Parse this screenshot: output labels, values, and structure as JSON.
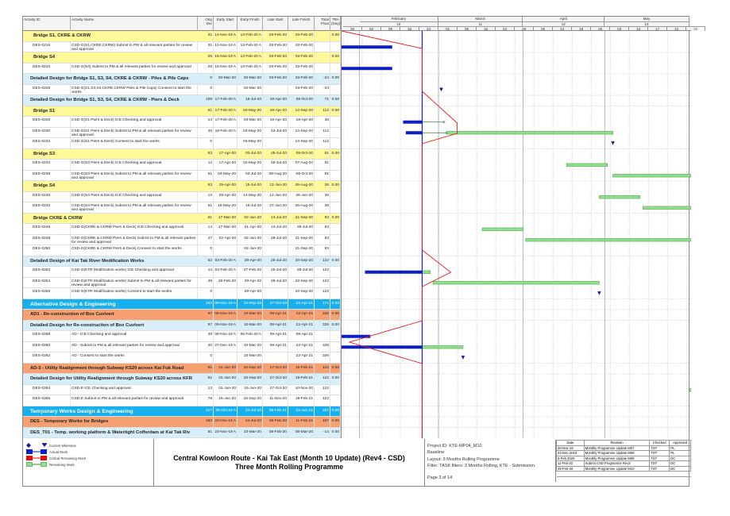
{
  "columns": {
    "id": "Activity ID",
    "name": "Activity Name",
    "dur": "Orig Dur",
    "es": "Early Start",
    "ef": "Early Finish",
    "ls": "Late Start",
    "lf": "Late Finish",
    "tf": "Total Float",
    "tra": "TRA (Day)"
  },
  "timeline": {
    "months": [
      {
        "label": "February",
        "num": "10",
        "start": "2020-02-01",
        "end": "2020-03-01"
      },
      {
        "label": "March",
        "num": "11",
        "start": "2020-03-01",
        "end": "2020-04-01"
      },
      {
        "label": "April",
        "num": "12",
        "start": "2020-04-01",
        "end": "2020-05-01"
      },
      {
        "label": "May",
        "num": "13",
        "start": "2020-05-01",
        "end": "2020-06-01"
      }
    ],
    "weeks": [
      "26",
      "02",
      "09",
      "16",
      "23",
      "01",
      "08",
      "15",
      "22",
      "29",
      "05",
      "12",
      "19",
      "26",
      "03",
      "10",
      "17",
      "24",
      "31"
    ],
    "start": "2020-01-26",
    "data_date": "2020-02-24"
  },
  "colors": {
    "actual": "#0a1fc8",
    "remaining": "#8fe08a",
    "critical": "#ee1c1c",
    "data_date": "#1a1ad0"
  },
  "rows": [
    {
      "style": "yellow",
      "g": 1,
      "lv": 1,
      "name": "Bridge S1, CKRE & CKRW",
      "dur": "31",
      "es": "14-Nov-19 A",
      "ef": "13-Feb-20 A",
      "ls": "03-Feb-20",
      "lf": "03-Feb-20",
      "tf": "",
      "tra": "0.00"
    },
    {
      "style": "white",
      "id": "DES-0216",
      "name": "CSD-G(S1,CKRE,CKRW) Submit to PM & all relevant parties for review and approval",
      "dur": "31",
      "es": "14-Nov-19 A",
      "ef": "13-Feb-20 A",
      "ls": "03-Feb-20",
      "lf": "03-Feb-20",
      "tf": "",
      "tra": "",
      "bars": [
        {
          "k": "actual",
          "s": "2019-11-14",
          "e": "2020-02-13"
        }
      ]
    },
    {
      "style": "yellow",
      "g": 1,
      "lv": 1,
      "name": "Bridge S4",
      "dur": "29",
      "es": "15-Nov-19 A",
      "ef": "13-Feb-20 A",
      "ls": "03-Feb-20",
      "lf": "03-Feb-20",
      "tf": "",
      "tra": "0.00"
    },
    {
      "style": "white",
      "id": "DES-0220",
      "name": "CSD-G(S4) Submit to PM & all relevant parties for review and approval",
      "dur": "29",
      "es": "15-Nov-19 A",
      "ef": "13-Feb-20 A",
      "ls": "03-Feb-20",
      "lf": "03-Feb-20",
      "tf": "",
      "tra": "",
      "bars": [
        {
          "k": "actual",
          "s": "2019-11-15",
          "e": "2020-02-13"
        }
      ]
    },
    {
      "style": "lblue",
      "g": 1,
      "lv": 0,
      "name": "Detailed Design for Bridge S1, S3, S4, CKRE & CKRW - Piles & Pile Caps",
      "dur": "0",
      "es": "02-Mar-20",
      "ef": "02-Mar-20",
      "ls": "03-Feb-20",
      "lf": "03-Feb-20",
      "tf": "-24",
      "tra": "0.00"
    },
    {
      "style": "white",
      "id": "DES-0226",
      "name": "CSD-G(S1,S3,S4,CKRE,CKRW Piles & Pile Caps) Consent to start the works",
      "dur": "0",
      "es": "",
      "ef": "02-Mar-20",
      "ls": "",
      "lf": "03-Feb-20",
      "tf": "-24",
      "tra": "",
      "bars": [
        {
          "k": "milestone",
          "s": "2020-03-02"
        }
      ]
    },
    {
      "style": "lblue",
      "g": 1,
      "lv": 0,
      "name": "Detailed Design for Bridge S1, S3, S4, CKRE & CKRW - Piers & Deck",
      "dur": "108",
      "es": "17-Feb-20 A",
      "ef": "15-Jul-20",
      "ls": "18-Apr-20",
      "lf": "08-Oct-20",
      "tf": "71",
      "tra": "0.00"
    },
    {
      "style": "yellow",
      "g": 1,
      "lv": 1,
      "name": "Bridge S1",
      "dur": "61",
      "es": "17-Feb-20 A",
      "ef": "04-May-20",
      "ls": "18-Apr-20",
      "lf": "14-Sep-20",
      "tf": "112",
      "tra": "0.00"
    },
    {
      "style": "white",
      "id": "DES-0228",
      "name": "CSD-G(S1 Piers & Deck) ICE Checking and approval",
      "dur": "14",
      "es": "17-Feb-20 A",
      "ef": "03-Mar-20",
      "ls": "18-Apr-20",
      "lf": "18-Apr-20",
      "tf": "36",
      "tra": "",
      "bars": [
        {
          "k": "actual",
          "s": "2020-02-17",
          "e": "2020-02-24"
        },
        {
          "k": "link",
          "s": "2020-02-24",
          "e": "2020-03-03"
        }
      ]
    },
    {
      "style": "white",
      "id": "DES-0230",
      "name": "CSD-G(S1 Piers & Deck) Submit to PM & all relevant parties for review and approval",
      "dur": "46",
      "es": "18-Feb-20 A",
      "ef": "04-May-20",
      "ls": "23-Jul-20",
      "lf": "14-Sep-20",
      "tf": "112",
      "tra": "",
      "bars": [
        {
          "k": "actual",
          "s": "2020-02-18",
          "e": "2020-02-24"
        },
        {
          "k": "link",
          "s": "2020-02-24",
          "e": "2020-03-04"
        },
        {
          "k": "remaining",
          "s": "2020-03-04",
          "e": "2020-05-04"
        }
      ]
    },
    {
      "style": "white",
      "id": "DES-0232",
      "name": "CSD-G(S1 Piers & Deck) Consent to start the works",
      "dur": "0",
      "es": "",
      "ef": "04-May-20",
      "ls": "",
      "lf": "14-Sep-20",
      "tf": "112",
      "tra": "",
      "bars": [
        {
          "k": "milestone",
          "s": "2020-05-04"
        }
      ]
    },
    {
      "style": "yellow",
      "g": 1,
      "lv": 1,
      "name": "Bridge S3",
      "dur": "63",
      "es": "17-Apr-20",
      "ef": "03-Jul-20",
      "ls": "25-Jul-20",
      "lf": "08-Oct-20",
      "tf": "81",
      "tra": "0.00"
    },
    {
      "style": "white",
      "id": "DES-0234",
      "name": "CSD-G(S3 Piers & Deck) ICE Checking and approval",
      "dur": "12",
      "es": "17-Apr-20",
      "ef": "02-May-20",
      "ls": "25-Jul-20",
      "lf": "07-Aug-20",
      "tf": "81",
      "tra": "",
      "bars": [
        {
          "k": "remaining",
          "s": "2020-04-17",
          "e": "2020-05-02"
        }
      ]
    },
    {
      "style": "white",
      "id": "DES-0236",
      "name": "CSD-G(S3 Piers & Deck) Submit to PM & all relevant parties for review and approval",
      "dur": "51",
      "es": "04-May-20",
      "ef": "03-Jul-20",
      "ls": "08-Aug-20",
      "lf": "08-Oct-20",
      "tf": "81",
      "tra": "",
      "bars": [
        {
          "k": "remaining",
          "s": "2020-05-04",
          "e": "2020-07-03"
        }
      ]
    },
    {
      "style": "yellow",
      "g": 1,
      "lv": 1,
      "name": "Bridge S4",
      "dur": "63",
      "es": "29-Apr-20",
      "ef": "15-Jul-20",
      "ls": "12-Jun-20",
      "lf": "26-Aug-20",
      "tf": "36",
      "tra": "0.00"
    },
    {
      "style": "white",
      "id": "DES-0240",
      "name": "CSD-G(S4 Piers & Deck) ICE Checking and approval",
      "dur": "12",
      "es": "29-Apr-20",
      "ef": "14-May-20",
      "ls": "12-Jun-20",
      "lf": "26-Jun-20",
      "tf": "36",
      "tra": "",
      "bars": [
        {
          "k": "remaining",
          "s": "2020-04-29",
          "e": "2020-05-14"
        }
      ]
    },
    {
      "style": "white",
      "id": "DES-0242",
      "name": "CSD-G(S4 Piers & Deck) Submit to PM & all relevant parties for review and approval",
      "dur": "51",
      "es": "15-May-20",
      "ef": "15-Jul-20",
      "ls": "27-Jun-20",
      "lf": "26-Aug-20",
      "tf": "36",
      "tra": "",
      "bars": [
        {
          "k": "remaining",
          "s": "2020-05-15",
          "e": "2020-07-15"
        }
      ]
    },
    {
      "style": "yellow",
      "g": 1,
      "lv": 1,
      "name": "Bridge CKRE & CKRW",
      "dur": "61",
      "es": "17-Mar-20",
      "ef": "02-Jun-20",
      "ls": "13-Jul-20",
      "lf": "21-Sep-20",
      "tf": "93",
      "tra": "0.00"
    },
    {
      "style": "white",
      "id": "DES-0246",
      "name": "CSD-G(CKRE & CKRW Piers & Deck) ICE Checking and approval",
      "dur": "14",
      "es": "17-Mar-20",
      "ef": "01-Apr-20",
      "ls": "13-Jul-20",
      "lf": "28-Jul-20",
      "tf": "93",
      "tra": "",
      "bars": [
        {
          "k": "remaining",
          "s": "2020-03-17",
          "e": "2020-04-01"
        }
      ]
    },
    {
      "style": "white",
      "id": "DES-0248",
      "name": "CSD-G(CKRE & CKRW Piers & Deck) Submit to PM & all relevant parties for review and approval",
      "dur": "47",
      "es": "02-Apr-20",
      "ef": "02-Jun-20",
      "ls": "29-Jul-20",
      "lf": "21-Sep-20",
      "tf": "93",
      "tra": "",
      "bars": [
        {
          "k": "remaining",
          "s": "2020-04-02",
          "e": "2020-06-02"
        }
      ]
    },
    {
      "style": "white",
      "id": "DES-0250",
      "name": "CSD-G(CKRE & CKRW Piers & Deck) Consent to start the works",
      "dur": "0",
      "es": "",
      "ef": "02-Jun-20",
      "ls": "",
      "lf": "21-Sep-20",
      "tf": "93",
      "tra": ""
    },
    {
      "style": "lblue",
      "g": 1,
      "lv": 0,
      "name": "Detailed Design of Kai Tak River Modification Works",
      "dur": "52",
      "es": "03-Feb-20 A",
      "ef": "29-Apr-20",
      "ls": "25-Jul-20",
      "lf": "23-Sep-20",
      "tf": "122",
      "tra": "0.00"
    },
    {
      "style": "white",
      "id": "DES-0252",
      "name": "CSD-G(KTR Modification works) ICE Checking and approval",
      "dur": "14",
      "es": "03-Feb-20 A",
      "ef": "27-Feb-20",
      "ls": "25-Jul-20",
      "lf": "28-Jul-20",
      "tf": "122",
      "tra": "",
      "bars": [
        {
          "k": "actual",
          "s": "2020-02-03",
          "e": "2020-02-24"
        },
        {
          "k": "remaining",
          "s": "2020-02-24",
          "e": "2020-02-27"
        }
      ]
    },
    {
      "style": "white",
      "id": "DES-0254",
      "name": "CSD-G(KTR Modification works) Submit to PM & all relevant parties for review and approval",
      "dur": "49",
      "es": "28-Feb-20",
      "ef": "29-Apr-20",
      "ls": "29-Jul-20",
      "lf": "23-Sep-20",
      "tf": "122",
      "tra": "",
      "bars": [
        {
          "k": "remaining",
          "s": "2020-02-28",
          "e": "2020-04-29"
        }
      ]
    },
    {
      "style": "white",
      "id": "DES-0256",
      "name": "CSD-G(KTR Modification works) Consent to start the works",
      "dur": "0",
      "es": "",
      "ef": "29-Apr-20",
      "ls": "",
      "lf": "23-Sep-20",
      "tf": "122",
      "tra": "",
      "bars": [
        {
          "k": "milestone",
          "s": "2020-04-29"
        }
      ]
    },
    {
      "style": "cyan",
      "g": 1,
      "lv": 0,
      "big": 1,
      "name": "Alternative Design & Engineering",
      "dur": "252",
      "es": "08-Nov-19 A",
      "ef": "16-Sep-20",
      "ls": "27-Oct-20",
      "lf": "22-Apr-21",
      "tf": "171",
      "tra": "0.00"
    },
    {
      "style": "orange",
      "g": 1,
      "lv": 0,
      "name": "AD1 - Re-construction of Box Cuvlvert",
      "dur": "97",
      "es": "08-Nov-19 A",
      "ef": "10-Mar-20",
      "ls": "08-Apr-21",
      "lf": "22-Apr-21",
      "tf": "326",
      "tra": "0.00"
    },
    {
      "style": "lblue",
      "g": 1,
      "lv": 0,
      "name": "Detailed Design for Re-construciton of Box Cuvlvert",
      "dur": "97",
      "es": "08-Nov-19 A",
      "ef": "10-Mar-20",
      "ls": "08-Apr-21",
      "lf": "22-Apr-21",
      "tf": "326",
      "tra": "0.00"
    },
    {
      "style": "white",
      "id": "DES-0258",
      "name": "AD - ICE Checking and approval",
      "dur": "48",
      "es": "08-Nov-19 A",
      "ef": "05-Feb-20 A",
      "ls": "08-Apr-21",
      "lf": "08-Apr-21",
      "tf": "",
      "tra": "",
      "bars": [
        {
          "k": "actual",
          "s": "2019-11-08",
          "e": "2020-02-05"
        }
      ]
    },
    {
      "style": "white",
      "id": "DES-0260",
      "name": "AD - Submit to PM & all relevant parties for review and approval",
      "dur": "20",
      "es": "27-Dec-19 A",
      "ef": "10-Mar-20",
      "ls": "08-Apr-21",
      "lf": "22-Apr-21",
      "tf": "326",
      "tra": "",
      "bars": [
        {
          "k": "actual",
          "s": "2019-12-27",
          "e": "2020-02-24"
        },
        {
          "k": "remaining",
          "s": "2020-02-24",
          "e": "2020-03-10"
        }
      ]
    },
    {
      "style": "white",
      "id": "DES-0262",
      "name": "AD - Consent to start the works",
      "dur": "0",
      "es": "",
      "ef": "10-Mar-20",
      "ls": "",
      "lf": "22-Apr-21",
      "tf": "326",
      "tra": "",
      "bars": [
        {
          "k": "milestone",
          "s": "2020-03-10"
        }
      ]
    },
    {
      "style": "orange",
      "g": 1,
      "lv": 0,
      "name": "AD-3 - Utility Realignment through Subway KS20 across Kai Fuk Road",
      "dur": "91",
      "es": "01-Jun-20",
      "ef": "16-Sep-20",
      "ls": "27-Oct-20",
      "lf": "19-Feb-21",
      "tf": "122",
      "tra": "0.00"
    },
    {
      "style": "lblue",
      "g": 1,
      "lv": 0,
      "name": "Detailed Design for Utility Realignment through Subway KS20 across KFR",
      "dur": "91",
      "es": "01-Jun-20",
      "ef": "16-Sep-20",
      "ls": "27-Oct-20",
      "lf": "19-Feb-21",
      "tf": "122",
      "tra": "0.00"
    },
    {
      "style": "white",
      "id": "DES-0264",
      "name": "CSD-E ICE Checking and approval",
      "dur": "13",
      "es": "01-Jun-20",
      "ef": "15-Jun-20",
      "ls": "27-Oct-20",
      "lf": "10-Nov-20",
      "tf": "122",
      "tra": "",
      "bars": [
        {
          "k": "remaining",
          "s": "2020-06-01",
          "e": "2020-06-15"
        }
      ]
    },
    {
      "style": "white",
      "id": "DES-0266",
      "name": "CSD-E Submit to PM & all relevant parties for review and approval",
      "dur": "78",
      "es": "16-Jun-20",
      "ef": "16-Sep-20",
      "ls": "11-Nov-20",
      "lf": "19-Feb-21",
      "tf": "122",
      "tra": ""
    },
    {
      "style": "cyan",
      "g": 1,
      "lv": 0,
      "big": 1,
      "name": "Temporary Works Design & Engineering",
      "dur": "217",
      "es": "26-Oct-19 A",
      "ef": "24-Jul-20",
      "ls": "08-Feb-21",
      "lf": "23-Jun-21",
      "tf": "267",
      "tra": "0.00"
    },
    {
      "style": "orange",
      "g": 1,
      "lv": 0,
      "name": "DES - Temporary Works for Bridges",
      "dur": "193",
      "es": "23-Nov-19 A",
      "ef": "24-Jul-20",
      "ls": "08-Feb-20",
      "lf": "11-Feb-21",
      "tf": "167",
      "tra": "0.00"
    },
    {
      "style": "lblue",
      "g": 1,
      "lv": 0,
      "name": "DES_T01 - Temp. working platform & Watertight Cofferdam at Kai Tak Riv",
      "dur": "81",
      "es": "23-Nov-19 A",
      "ef": "23-Mar-20",
      "ls": "08-Feb-20",
      "lf": "06-Mar-20",
      "tf": "-14",
      "tra": "0.00"
    }
  ],
  "legend": [
    {
      "icon": "milestone-icons",
      "label": "Current Milestone"
    },
    {
      "icon": "actual-bar",
      "label": "Actual Work"
    },
    {
      "icon": "critical-bar",
      "label": "Critical Remaining Work"
    },
    {
      "icon": "remaining-bar",
      "label": "Remaining Work"
    }
  ],
  "footer": {
    "title1": "Central Kowloon Route - Kai Tak East (Month 10 Update) (Rev4 - CSD)",
    "title2": "Three Month Rolling Programme",
    "project_id": "Project ID: KTE-WP04_M10",
    "baseline": "Baseline:",
    "layout": "Layout: 3 Months Rolling Programme",
    "filter": "Filter: TASK filters: 3 Months Rolling, KTE - Submission.",
    "page": "Page 3 of 14"
  },
  "revisions": {
    "headers": [
      "Date",
      "Revision",
      "Checked",
      "Approved"
    ],
    "rows": [
      [
        "26-Nov-19",
        "Monthly Programme Update M07",
        "TST",
        "PL"
      ],
      [
        "24-Dec-2019",
        "Monthly Programme Update M08",
        "TST",
        "PL"
      ],
      [
        "5-Feb 2020",
        "Monthly Programme Update M09",
        "TST",
        "DC"
      ],
      [
        "11-Feb-20",
        "Submit CSD Programme Rev3",
        "TST",
        "DC"
      ],
      [
        "25-Feb-20",
        "Monthly Programme Update M10",
        "TST",
        "DC"
      ]
    ]
  }
}
